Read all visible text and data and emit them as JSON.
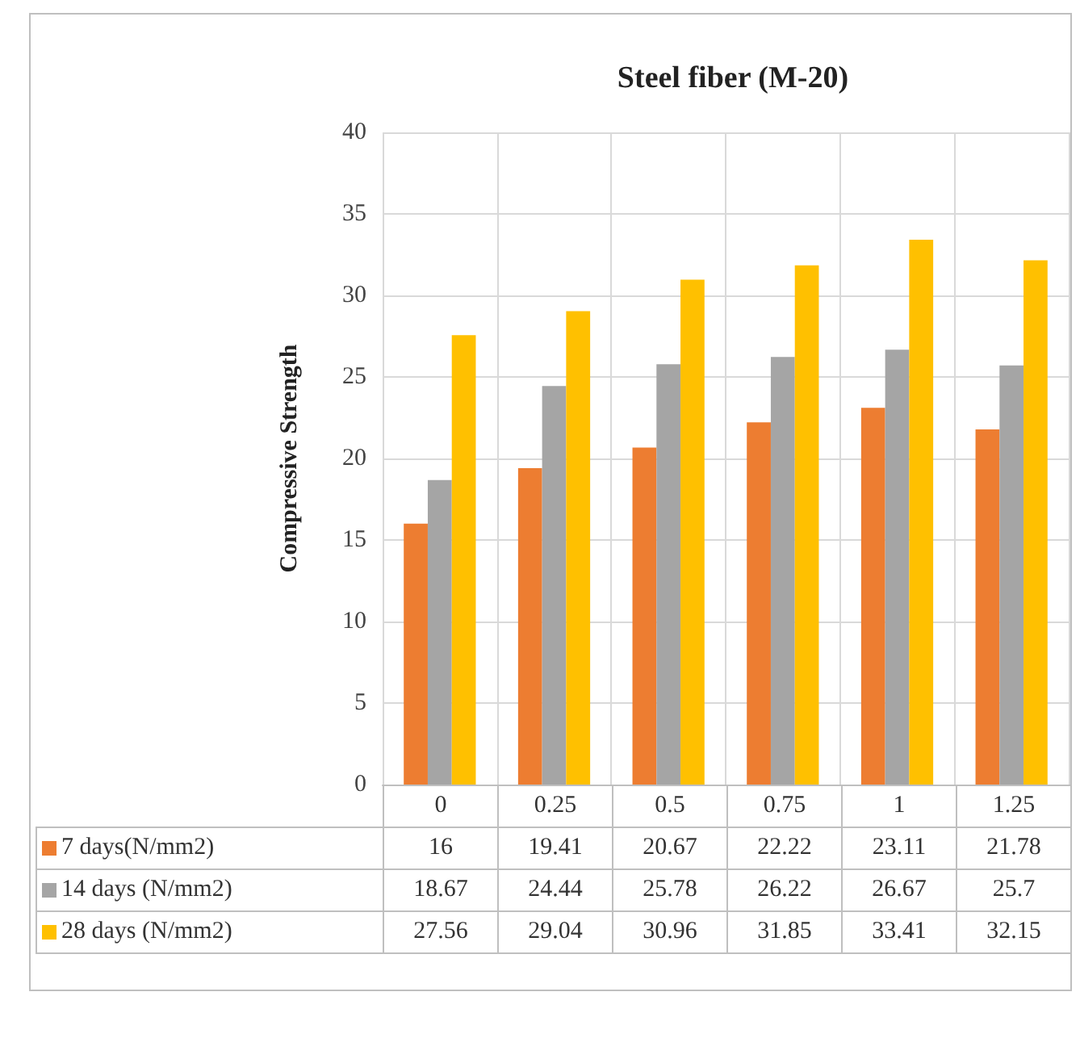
{
  "chart_data": {
    "type": "bar",
    "title": "Steel fiber (M-20)",
    "ylabel": "Compressive Strength",
    "categories": [
      "0",
      "0.25",
      "0.5",
      "0.75",
      "1",
      "1.25"
    ],
    "series": [
      {
        "name": "7 days(N/mm2)",
        "color": "#ed7d31",
        "values": [
          16,
          19.41,
          20.67,
          22.22,
          23.11,
          21.78
        ]
      },
      {
        "name": "14 days (N/mm2)",
        "color": "#a5a5a5",
        "values": [
          18.67,
          24.44,
          25.78,
          26.22,
          26.67,
          25.7
        ]
      },
      {
        "name": "28 days (N/mm2)",
        "color": "#ffc000",
        "values": [
          27.56,
          29.04,
          30.96,
          31.85,
          33.41,
          32.15
        ]
      }
    ],
    "ylim": [
      0,
      40
    ],
    "yticks": [
      0,
      5,
      10,
      15,
      20,
      25,
      30,
      35,
      40
    ],
    "grid": true,
    "legend": "bottom",
    "data_labels": true
  }
}
